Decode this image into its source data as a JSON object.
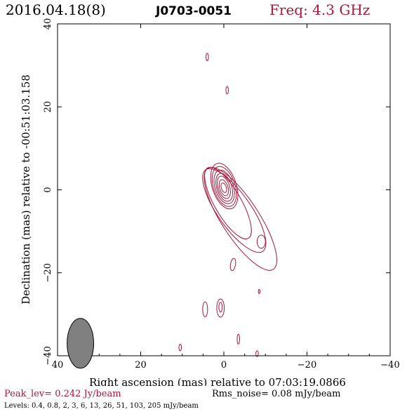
{
  "header": {
    "date": "2016.04.18(8)",
    "source": "J0703-0051",
    "freq": "Freq: 4.3 GHz"
  },
  "footer": {
    "peak": "Peak_lev=  0.242 Jy/beam",
    "rms": "Rms_noise= 0.08 mJy/beam",
    "levels": "Levels: 0.4, 0.8,   2,   3,   6,  13,  26,  51, 103, 205 mJy/beam"
  },
  "colors": {
    "contour": "#a5183b",
    "axes": "#000000",
    "beam": "#808080"
  },
  "chart_data": {
    "type": "contour",
    "xlabel": "Right ascension (mas) relative to 07:03:19.0866",
    "ylabel": "Declination (mas) relative to -00:51:03.158",
    "xlim": [
      40,
      -40
    ],
    "ylim": [
      -40,
      40
    ],
    "xticks": [
      40,
      20,
      0,
      -20,
      -40
    ],
    "yticks": [
      -40,
      -20,
      0,
      20,
      40
    ],
    "beam": {
      "x": 34.5,
      "y": -37,
      "ra_width": 1.6,
      "dec_height": 4.0
    },
    "contours": [
      {
        "cx": 0,
        "cy": 0.5,
        "rx": 0.6,
        "ry": 1.2,
        "rot": -18
      },
      {
        "cx": 0,
        "cy": 0.5,
        "rx": 1.0,
        "ry": 2.0,
        "rot": -18
      },
      {
        "cx": 0,
        "cy": 0.6,
        "rx": 1.4,
        "ry": 2.8,
        "rot": -18
      },
      {
        "cx": -0.1,
        "cy": 0.6,
        "rx": 1.8,
        "ry": 3.5,
        "rot": -18
      },
      {
        "cx": -0.1,
        "cy": 0.7,
        "rx": 2.2,
        "ry": 4.2,
        "rot": -18
      },
      {
        "cx": -0.1,
        "cy": 0.8,
        "rx": 2.6,
        "ry": 5.0,
        "rot": -18
      },
      {
        "cx": -0.1,
        "cy": 0.9,
        "rx": 2.9,
        "ry": 5.7,
        "rot": -18
      },
      {
        "cx": -1.0,
        "cy": -3.2,
        "rx": 3.2,
        "ry": 9.8,
        "rot": -30
      },
      {
        "cx": -2.5,
        "cy": -5.0,
        "rx": 4.0,
        "ry": 12.0,
        "rot": -35
      },
      {
        "cx": -4.0,
        "cy": -7.0,
        "rx": 4.5,
        "ry": 14.5,
        "rot": -33
      },
      {
        "cx": -9.0,
        "cy": -12.5,
        "rx": 1.0,
        "ry": 1.6,
        "rot": 0
      },
      {
        "cx": -2.2,
        "cy": -18.0,
        "rx": 0.6,
        "ry": 1.5,
        "rot": 10
      },
      {
        "cx": 4.0,
        "cy": 32.0,
        "rx": 0.3,
        "ry": 0.9,
        "rot": 0
      },
      {
        "cx": -0.8,
        "cy": 24.0,
        "rx": 0.3,
        "ry": 0.9,
        "rot": 0
      },
      {
        "cx": 0.8,
        "cy": -28.5,
        "rx": 0.9,
        "ry": 2.2,
        "rot": 0
      },
      {
        "cx": 0.8,
        "cy": -28.3,
        "rx": 0.4,
        "ry": 1.2,
        "rot": 0
      },
      {
        "cx": 4.5,
        "cy": -28.8,
        "rx": 0.6,
        "ry": 1.8,
        "rot": 0
      },
      {
        "cx": -8.5,
        "cy": -24.5,
        "rx": 0.2,
        "ry": 0.5,
        "rot": 0
      },
      {
        "cx": -3.5,
        "cy": -36.0,
        "rx": 0.3,
        "ry": 1.2,
        "rot": 0
      },
      {
        "cx": 10.5,
        "cy": -38.0,
        "rx": 0.3,
        "ry": 0.8,
        "rot": 0
      },
      {
        "cx": -8.0,
        "cy": -39.5,
        "rx": 0.3,
        "ry": 0.7,
        "rot": 0
      }
    ]
  }
}
